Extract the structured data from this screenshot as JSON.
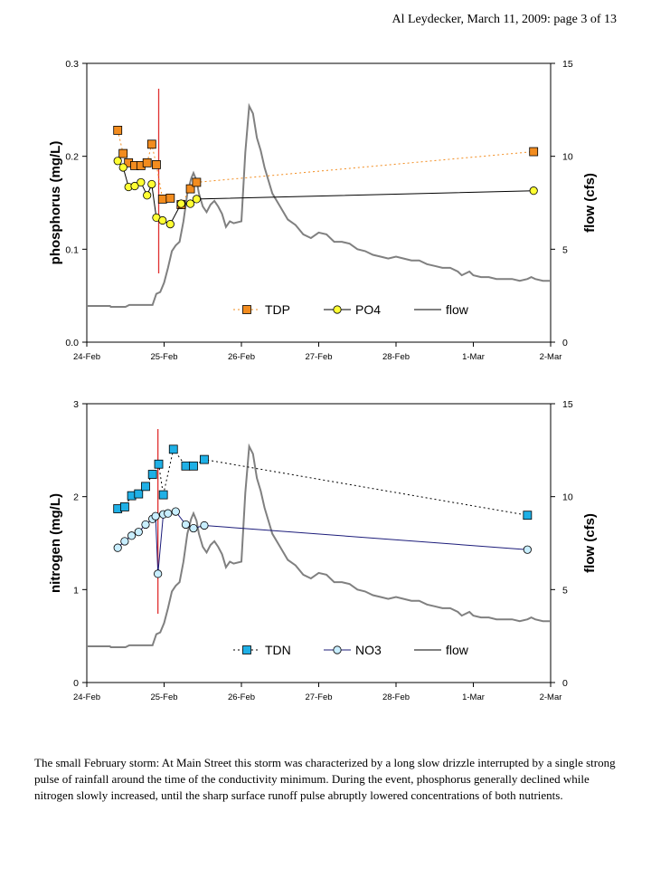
{
  "page": {
    "header": "Al Leydecker, March 11, 2009: page 3 of 13",
    "caption": "The small February storm: At Main Street this storm was characterized by a long slow drizzle interrupted by a single strong pulse of rainfall around the time of the conductivity minimum. During the event, phosphorus generally declined while nitrogen slowly increased, until the sharp surface runoff pulse abruptly lowered concentrations of both nutrients."
  },
  "colors": {
    "tdp": "#f28c1f",
    "po4": "#ffff33",
    "tdn": "#1fb0e6",
    "no3": "#c8eeff",
    "flow": "#808080",
    "marker_line": "#e03030",
    "nitrogen_dashed": "#000000",
    "no3_line": "#1c1c7a",
    "po4_line": "#000000"
  },
  "chart_data": [
    {
      "type": "line",
      "id": "phosphorus",
      "title": "",
      "ylabel": "phosphorus (mg/L)",
      "y2label": "flow (cfs)",
      "xlabel": "",
      "xticks": [
        "24-Feb",
        "25-Feb",
        "26-Feb",
        "27-Feb",
        "28-Feb",
        "1-Mar",
        "2-Mar"
      ],
      "xlim": [
        0,
        6
      ],
      "ylim": [
        0,
        0.3
      ],
      "y2lim": [
        0,
        15
      ],
      "yticks": [
        "0.0",
        "0.1",
        "0.2",
        "0.3"
      ],
      "y2ticks": [
        "0",
        "5",
        "10",
        "15"
      ],
      "grid": false,
      "legend_position": "bottom-right",
      "vline_x": 0.93,
      "series": [
        {
          "name": "TDP",
          "marker": "square",
          "line": "dotted",
          "x": [
            0.4,
            0.47,
            0.54,
            0.62,
            0.7,
            0.78,
            0.84,
            0.9,
            0.98,
            1.08,
            1.22,
            1.34,
            1.42,
            5.78
          ],
          "values": [
            0.228,
            0.203,
            0.193,
            0.19,
            0.19,
            0.193,
            0.213,
            0.191,
            0.154,
            0.155,
            0.148,
            0.165,
            0.172,
            0.205
          ]
        },
        {
          "name": "PO4",
          "marker": "circle",
          "line": "solid",
          "x": [
            0.4,
            0.47,
            0.54,
            0.62,
            0.7,
            0.78,
            0.84,
            0.9,
            0.98,
            1.08,
            1.22,
            1.34,
            1.42,
            5.78
          ],
          "values": [
            0.195,
            0.188,
            0.167,
            0.168,
            0.172,
            0.158,
            0.17,
            0.134,
            0.131,
            0.127,
            0.149,
            0.149,
            0.154,
            0.163
          ]
        },
        {
          "name": "flow",
          "axis": "y2",
          "line": "solid",
          "x": [
            0,
            0.3,
            0.31,
            0.5,
            0.55,
            0.85,
            0.9,
            0.95,
            1.0,
            1.05,
            1.1,
            1.15,
            1.2,
            1.25,
            1.3,
            1.35,
            1.38,
            1.42,
            1.45,
            1.5,
            1.55,
            1.6,
            1.65,
            1.7,
            1.75,
            1.8,
            1.85,
            1.9,
            2.0,
            2.05,
            2.1,
            2.15,
            2.2,
            2.25,
            2.3,
            2.35,
            2.4,
            2.5,
            2.6,
            2.7,
            2.8,
            2.9,
            3.0,
            3.1,
            3.2,
            3.3,
            3.4,
            3.5,
            3.6,
            3.7,
            3.8,
            3.9,
            4.0,
            4.1,
            4.2,
            4.3,
            4.4,
            4.5,
            4.6,
            4.7,
            4.8,
            4.85,
            4.9,
            4.95,
            5.0,
            5.1,
            5.2,
            5.3,
            5.4,
            5.5,
            5.6,
            5.7,
            5.75,
            5.8,
            5.9,
            6.0
          ],
          "values": [
            1.95,
            1.95,
            1.9,
            1.9,
            2.0,
            2.0,
            2.6,
            2.7,
            3.2,
            4.0,
            4.9,
            5.2,
            5.4,
            6.5,
            8.0,
            8.8,
            9.1,
            8.7,
            8.0,
            7.3,
            7.0,
            7.4,
            7.6,
            7.3,
            6.9,
            6.2,
            6.5,
            6.4,
            6.5,
            10.2,
            12.7,
            12.3,
            11.0,
            10.3,
            9.4,
            8.7,
            8.0,
            7.3,
            6.6,
            6.3,
            5.8,
            5.6,
            5.9,
            5.8,
            5.4,
            5.4,
            5.3,
            5.0,
            4.9,
            4.7,
            4.6,
            4.5,
            4.6,
            4.5,
            4.4,
            4.4,
            4.2,
            4.1,
            4.0,
            4.0,
            3.8,
            3.6,
            3.7,
            3.8,
            3.6,
            3.5,
            3.5,
            3.4,
            3.4,
            3.4,
            3.3,
            3.4,
            3.5,
            3.4,
            3.3,
            3.3
          ]
        }
      ]
    },
    {
      "type": "line",
      "id": "nitrogen",
      "title": "",
      "ylabel": "nitrogen (mg/L)",
      "y2label": "flow (cfs)",
      "xlabel": "",
      "xticks": [
        "24-Feb",
        "25-Feb",
        "26-Feb",
        "27-Feb",
        "28-Feb",
        "1-Mar",
        "2-Mar"
      ],
      "xlim": [
        0,
        6
      ],
      "ylim": [
        0,
        3
      ],
      "y2lim": [
        0,
        15
      ],
      "yticks": [
        "0",
        "1",
        "2",
        "3"
      ],
      "y2ticks": [
        "0",
        "5",
        "10",
        "15"
      ],
      "grid": false,
      "legend_position": "bottom-right",
      "vline_x": 0.92,
      "series": [
        {
          "name": "TDN",
          "marker": "square",
          "line": "dotted",
          "x": [
            0.4,
            0.49,
            0.58,
            0.67,
            0.76,
            0.85,
            0.93,
            0.99,
            1.12,
            1.28,
            1.38,
            1.52,
            5.7
          ],
          "values": [
            1.87,
            1.89,
            2.01,
            2.03,
            2.11,
            2.24,
            2.35,
            2.02,
            2.51,
            2.33,
            2.33,
            2.4,
            1.8
          ]
        },
        {
          "name": "NO3",
          "marker": "circle",
          "line": "solid",
          "x": [
            0.4,
            0.49,
            0.58,
            0.67,
            0.76,
            0.85,
            0.89,
            0.92,
            0.99,
            1.05,
            1.15,
            1.28,
            1.38,
            1.52,
            5.7
          ],
          "values": [
            1.45,
            1.52,
            1.58,
            1.62,
            1.7,
            1.76,
            1.79,
            1.17,
            1.81,
            1.82,
            1.84,
            1.7,
            1.66,
            1.69,
            1.43
          ]
        },
        {
          "name": "flow",
          "axis": "y2",
          "line": "solid",
          "x": [
            0,
            0.3,
            0.31,
            0.5,
            0.55,
            0.85,
            0.9,
            0.95,
            1.0,
            1.05,
            1.1,
            1.15,
            1.2,
            1.25,
            1.3,
            1.35,
            1.38,
            1.42,
            1.45,
            1.5,
            1.55,
            1.6,
            1.65,
            1.7,
            1.75,
            1.8,
            1.85,
            1.9,
            2.0,
            2.05,
            2.1,
            2.15,
            2.2,
            2.25,
            2.3,
            2.35,
            2.4,
            2.5,
            2.6,
            2.7,
            2.8,
            2.9,
            3.0,
            3.1,
            3.2,
            3.3,
            3.4,
            3.5,
            3.6,
            3.7,
            3.8,
            3.9,
            4.0,
            4.1,
            4.2,
            4.3,
            4.4,
            4.5,
            4.6,
            4.7,
            4.8,
            4.85,
            4.9,
            4.95,
            5.0,
            5.1,
            5.2,
            5.3,
            5.4,
            5.5,
            5.6,
            5.7,
            5.75,
            5.8,
            5.9,
            6.0
          ],
          "values": [
            1.95,
            1.95,
            1.9,
            1.9,
            2.0,
            2.0,
            2.6,
            2.7,
            3.2,
            4.0,
            4.9,
            5.2,
            5.4,
            6.5,
            8.0,
            8.8,
            9.1,
            8.7,
            8.0,
            7.3,
            7.0,
            7.4,
            7.6,
            7.3,
            6.9,
            6.2,
            6.5,
            6.4,
            6.5,
            10.2,
            12.7,
            12.3,
            11.0,
            10.3,
            9.4,
            8.7,
            8.0,
            7.3,
            6.6,
            6.3,
            5.8,
            5.6,
            5.9,
            5.8,
            5.4,
            5.4,
            5.3,
            5.0,
            4.9,
            4.7,
            4.6,
            4.5,
            4.6,
            4.5,
            4.4,
            4.4,
            4.2,
            4.1,
            4.0,
            4.0,
            3.8,
            3.6,
            3.7,
            3.8,
            3.6,
            3.5,
            3.5,
            3.4,
            3.4,
            3.4,
            3.3,
            3.4,
            3.5,
            3.4,
            3.3,
            3.3
          ]
        }
      ]
    }
  ]
}
